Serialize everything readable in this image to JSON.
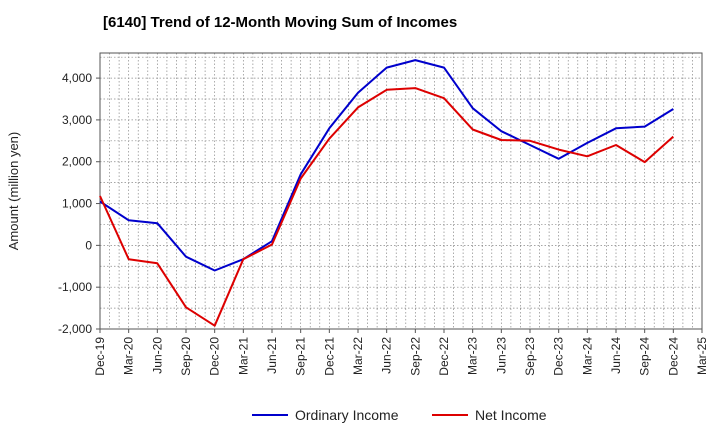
{
  "chart_data": {
    "type": "line",
    "title": "[6140]  Trend of 12-Month Moving Sum of Incomes",
    "ylabel": "Amount (million yen)",
    "xlabel": "",
    "ylim": [
      -2000,
      4600
    ],
    "yticks": [
      -2000,
      -1000,
      0,
      1000,
      2000,
      3000,
      4000
    ],
    "ytick_labels": [
      "-2,000",
      "-1,000",
      "0",
      "1,000",
      "2,000",
      "3,000",
      "4,000"
    ],
    "categories": [
      "Dec-19",
      "Mar-20",
      "Jun-20",
      "Sep-20",
      "Dec-20",
      "Mar-21",
      "Jun-21",
      "Sep-21",
      "Dec-21",
      "Mar-22",
      "Jun-22",
      "Sep-22",
      "Dec-22",
      "Mar-23",
      "Jun-23",
      "Sep-23",
      "Dec-23",
      "Mar-24",
      "Jun-24",
      "Sep-24",
      "Dec-24",
      "Mar-25"
    ],
    "grid": true,
    "legend_position": "bottom",
    "series": [
      {
        "name": "Ordinary Income",
        "color": "#0000cc",
        "values": [
          1050,
          600,
          530,
          -270,
          -600,
          -330,
          100,
          1700,
          2800,
          3650,
          4250,
          4430,
          4250,
          3280,
          2730,
          2400,
          2070,
          2450,
          2800,
          2840,
          3260,
          null
        ]
      },
      {
        "name": "Net Income",
        "color": "#dd0000",
        "values": [
          1180,
          -330,
          -430,
          -1480,
          -1920,
          -330,
          20,
          1600,
          2550,
          3300,
          3720,
          3760,
          3520,
          2770,
          2520,
          2500,
          2290,
          2130,
          2400,
          1990,
          2600,
          null
        ]
      }
    ]
  }
}
